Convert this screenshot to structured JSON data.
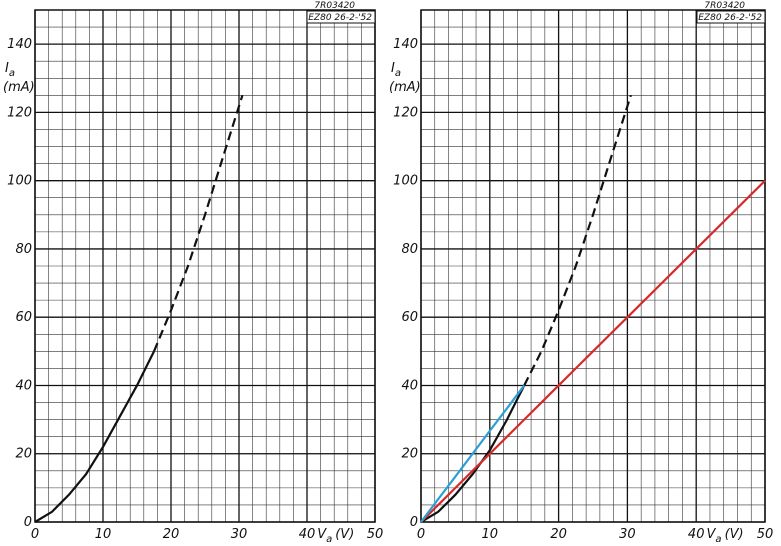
{
  "chart_data": [
    {
      "type": "line",
      "annotations": [
        "7R03420",
        "EZ80 26-2-'52"
      ],
      "ylabel": {
        "symbol": "I",
        "subscript": "a",
        "unit": "(mA)"
      },
      "xlabel": {
        "symbol": "V",
        "subscript": "a",
        "unit": "(V)"
      },
      "x": [
        0,
        2.5,
        5,
        7.5,
        10,
        12.5,
        15,
        17.5,
        20,
        22.5,
        25,
        27.5,
        30.5
      ],
      "series": [
        {
          "color": "#111111",
          "dash": false,
          "values": [
            0,
            3,
            8,
            14,
            22,
            31,
            40,
            50,
            null,
            null,
            null,
            null,
            null
          ]
        },
        {
          "color": "#111111",
          "dash": true,
          "values": [
            null,
            null,
            null,
            null,
            null,
            null,
            null,
            50,
            62,
            75,
            90,
            106,
            125
          ]
        }
      ],
      "xlim": [
        0,
        50
      ],
      "ylim": [
        0,
        150
      ],
      "xticks": [
        0,
        10,
        20,
        30,
        40,
        50
      ],
      "yticks": [
        0,
        20,
        40,
        60,
        80,
        100,
        120,
        140
      ],
      "grid": true,
      "minor_grid": {
        "x": 2,
        "y": 5
      }
    },
    {
      "type": "line",
      "annotations": [
        "7R03420",
        "EZ80 26-2-'52"
      ],
      "ylabel": {
        "symbol": "I",
        "subscript": "a",
        "unit": "(mA)"
      },
      "xlabel": {
        "symbol": "V",
        "subscript": "a",
        "unit": "(V)"
      },
      "x": [
        0,
        2.5,
        5,
        7.5,
        10,
        12.5,
        15,
        17.5,
        20,
        22.5,
        25,
        27.5,
        30.5,
        50
      ],
      "series": [
        {
          "color": "#111111",
          "dash": false,
          "values": [
            0,
            3,
            8,
            14,
            21,
            30,
            40,
            null,
            null,
            null,
            null,
            null,
            null,
            null
          ]
        },
        {
          "color": "#111111",
          "dash": true,
          "values": [
            null,
            null,
            null,
            null,
            null,
            null,
            40,
            50,
            62,
            75,
            90,
            106,
            125,
            null
          ]
        },
        {
          "color": "#d62a2a",
          "dash": false,
          "values": [
            0,
            5,
            10,
            15,
            20,
            25,
            30,
            35,
            40,
            45,
            50,
            55,
            61,
            100
          ]
        },
        {
          "color": "#2a9fd6",
          "dash": false,
          "values": [
            0,
            6.7,
            13.3,
            20,
            26.7,
            33.3,
            40,
            null,
            null,
            null,
            null,
            null,
            null,
            null
          ]
        }
      ],
      "xlim": [
        0,
        50
      ],
      "ylim": [
        0,
        150
      ],
      "xticks": [
        0,
        10,
        20,
        30,
        40,
        50
      ],
      "yticks": [
        0,
        20,
        40,
        60,
        80,
        100,
        120,
        140
      ],
      "grid": true,
      "minor_grid": {
        "x": 2,
        "y": 5
      }
    }
  ]
}
